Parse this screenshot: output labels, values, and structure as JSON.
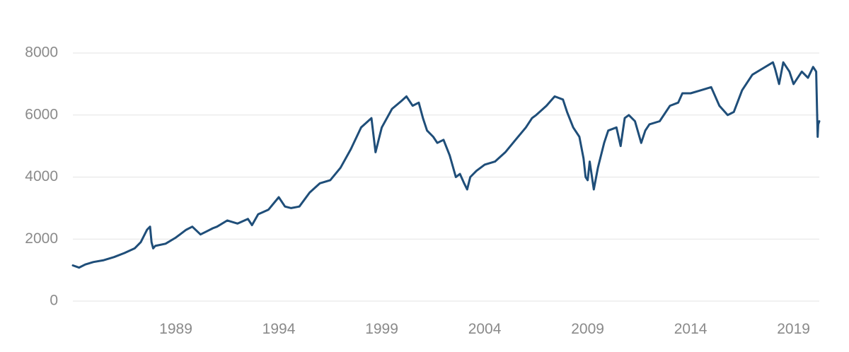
{
  "chart_data": {
    "type": "line",
    "title": "",
    "xlabel": "",
    "ylabel": "",
    "grid": true,
    "legend": "none",
    "xlim": [
      1984.0,
      2020.25
    ],
    "ylim": [
      0,
      8000
    ],
    "x_ticks": [
      {
        "value": 1989,
        "label": "1989"
      },
      {
        "value": 1994,
        "label": "1994"
      },
      {
        "value": 1999,
        "label": "1999"
      },
      {
        "value": 2004,
        "label": "2004"
      },
      {
        "value": 2009,
        "label": "2009"
      },
      {
        "value": 2014,
        "label": "2014"
      },
      {
        "value": 2019,
        "label": "2019"
      }
    ],
    "y_ticks": [
      {
        "value": 0,
        "label": "0"
      },
      {
        "value": 2000,
        "label": "2000"
      },
      {
        "value": 4000,
        "label": "4000"
      },
      {
        "value": 6000,
        "label": "6000"
      },
      {
        "value": 8000,
        "label": "8000"
      }
    ],
    "series": [
      {
        "color": "#1f4e79",
        "x": [
          1984.0,
          1984.3,
          1984.6,
          1985.0,
          1985.5,
          1986.0,
          1986.5,
          1987.0,
          1987.3,
          1987.6,
          1987.75,
          1987.82,
          1987.9,
          1988.0,
          1988.5,
          1989.0,
          1989.5,
          1989.8,
          1990.2,
          1990.5,
          1990.8,
          1991.0,
          1991.5,
          1992.0,
          1992.5,
          1992.7,
          1993.0,
          1993.5,
          1994.0,
          1994.3,
          1994.6,
          1995.0,
          1995.5,
          1996.0,
          1996.5,
          1997.0,
          1997.5,
          1998.0,
          1998.5,
          1998.7,
          1999.0,
          1999.5,
          1999.95,
          2000.2,
          2000.5,
          2000.8,
          2001.0,
          2001.2,
          2001.5,
          2001.7,
          2002.0,
          2002.3,
          2002.6,
          2002.8,
          2003.0,
          2003.15,
          2003.3,
          2003.6,
          2004.0,
          2004.5,
          2005.0,
          2005.5,
          2006.0,
          2006.3,
          2006.5,
          2007.0,
          2007.4,
          2007.8,
          2008.0,
          2008.3,
          2008.6,
          2008.8,
          2008.9,
          2009.0,
          2009.1,
          2009.3,
          2009.5,
          2009.8,
          2010.0,
          2010.4,
          2010.6,
          2010.8,
          2011.0,
          2011.3,
          2011.6,
          2011.8,
          2012.0,
          2012.5,
          2013.0,
          2013.4,
          2013.6,
          2014.0,
          2014.5,
          2015.0,
          2015.4,
          2015.8,
          2016.1,
          2016.5,
          2017.0,
          2017.5,
          2018.0,
          2018.1,
          2018.3,
          2018.5,
          2018.8,
          2019.0,
          2019.4,
          2019.7,
          2019.95,
          2020.1,
          2020.17,
          2020.2,
          2020.25
        ],
        "values": [
          1150,
          1080,
          1180,
          1260,
          1320,
          1420,
          1550,
          1700,
          1900,
          2300,
          2400,
          1900,
          1700,
          1780,
          1850,
          2050,
          2300,
          2400,
          2150,
          2250,
          2350,
          2400,
          2600,
          2500,
          2650,
          2450,
          2800,
          2950,
          3350,
          3050,
          3000,
          3050,
          3500,
          3800,
          3900,
          4300,
          4900,
          5600,
          5900,
          4800,
          5600,
          6200,
          6450,
          6600,
          6300,
          6400,
          5900,
          5500,
          5300,
          5100,
          5200,
          4700,
          4000,
          4100,
          3800,
          3600,
          4000,
          4200,
          4400,
          4500,
          4800,
          5200,
          5600,
          5900,
          6000,
          6300,
          6600,
          6500,
          6100,
          5600,
          5300,
          4600,
          4000,
          3900,
          4500,
          3600,
          4300,
          5100,
          5500,
          5600,
          5000,
          5900,
          6000,
          5800,
          5100,
          5500,
          5700,
          5800,
          6300,
          6400,
          6700,
          6700,
          6800,
          6900,
          6300,
          6000,
          6100,
          6800,
          7300,
          7500,
          7700,
          7500,
          7000,
          7700,
          7400,
          7000,
          7400,
          7200,
          7550,
          7400,
          5300,
          5700,
          5800
        ]
      }
    ]
  }
}
